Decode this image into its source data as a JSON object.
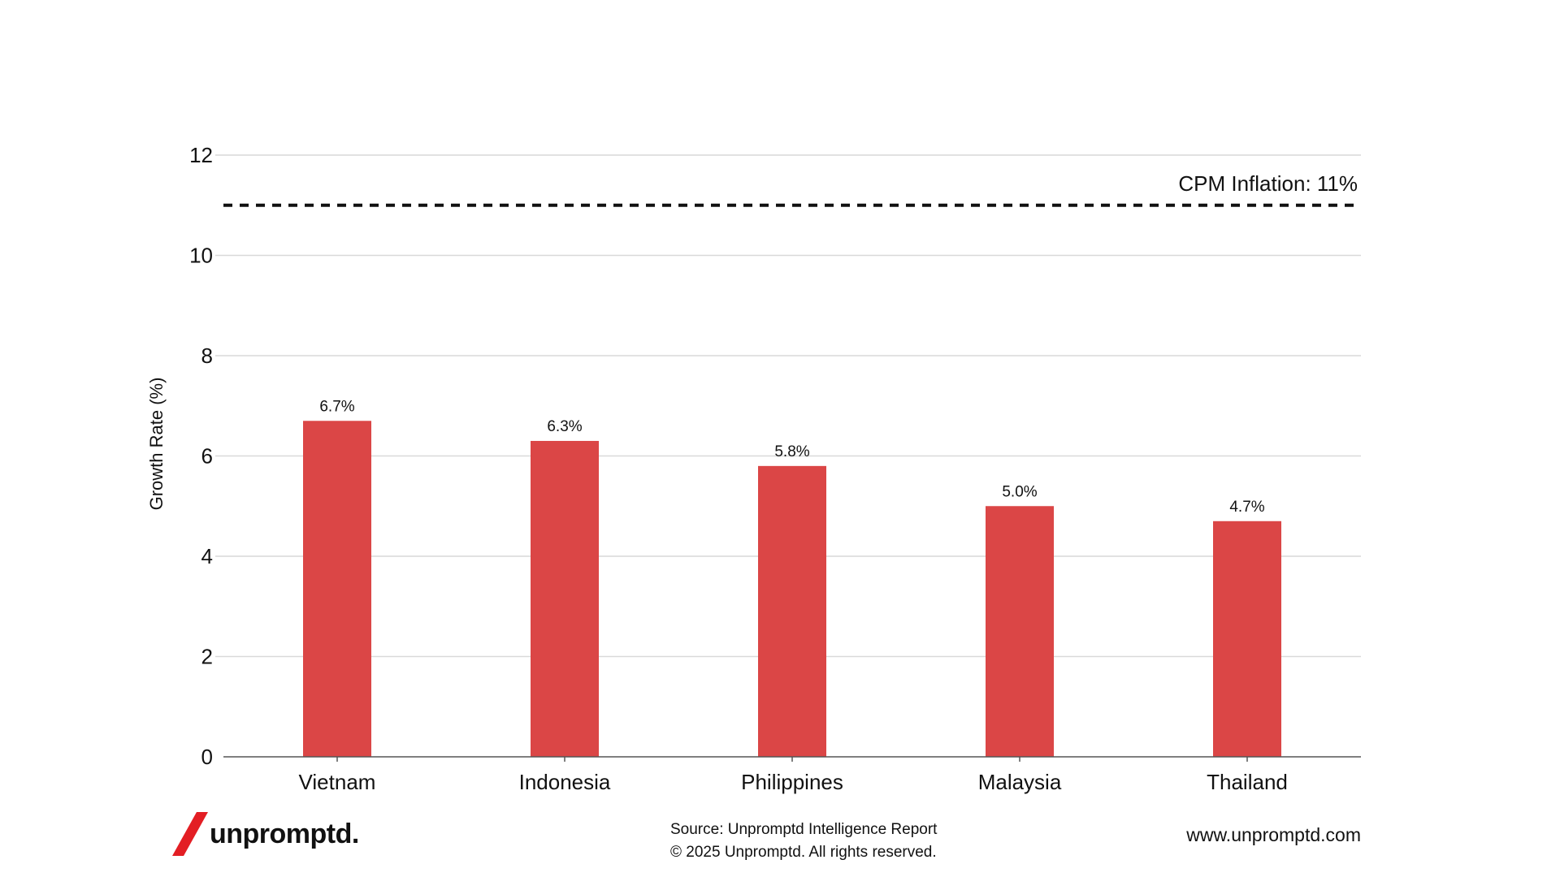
{
  "chart_data": {
    "type": "bar",
    "categories": [
      "Vietnam",
      "Indonesia",
      "Philippines",
      "Malaysia",
      "Thailand"
    ],
    "values": [
      6.7,
      6.3,
      5.8,
      5.0,
      4.7
    ],
    "data_labels": [
      "6.7%",
      "6.3%",
      "5.8%",
      "5.0%",
      "4.7%"
    ],
    "title": "",
    "xlabel": "",
    "ylabel": "Growth Rate (%)",
    "ylim": [
      0,
      12
    ],
    "yticks": [
      0,
      2,
      4,
      6,
      8,
      10,
      12
    ],
    "grid": true,
    "bar_color": "#db4646",
    "reference_line": {
      "value": 11,
      "label": "CPM Inflation: 11%",
      "style": "dashed",
      "color": "#111111"
    }
  },
  "footer": {
    "logo_text": "unpromptd.",
    "logo_accent_color": "#e31e24",
    "source": "Source: Unpromptd Intelligence Report",
    "copyright": "© 2025 Unpromptd. All rights reserved.",
    "url": "www.unpromptd.com"
  }
}
